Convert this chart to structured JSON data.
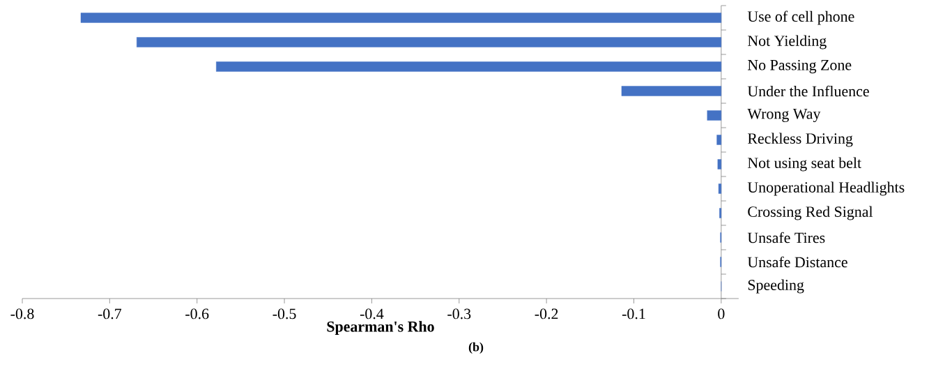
{
  "chart_data": {
    "type": "bar",
    "orientation": "horizontal",
    "xlabel": "Spearman's Rho",
    "annotations": [
      "(b)"
    ],
    "categories": [
      "Use of cell phone",
      "Not Yielding",
      "No Passing Zone",
      "Under the Influence",
      "Wrong Way",
      "Reckless Driving",
      "Not using seat belt",
      "Unoperational Headlights",
      "Crossing Red Signal",
      "Unsafe Tires",
      "Unsafe Distance",
      "Speeding"
    ],
    "values": [
      -0.733,
      -0.669,
      -0.578,
      -0.114,
      -0.016,
      -0.005,
      -0.004,
      -0.003,
      -0.002,
      -0.001,
      -0.001,
      0
    ],
    "color": "#4472c4",
    "xlim": [
      -0.8,
      0.02
    ],
    "xticks": [
      -0.8,
      -0.7,
      -0.6,
      -0.5,
      -0.4,
      -0.3,
      -0.2,
      -0.1,
      0
    ],
    "grid": false
  }
}
